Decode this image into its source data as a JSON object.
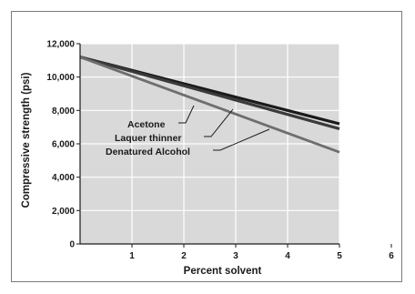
{
  "chart_data": {
    "type": "line",
    "xlabel": "Percent solvent",
    "ylabel": "Compressive strength (psi)",
    "xlim": [
      0,
      6
    ],
    "ylim": [
      0,
      12000
    ],
    "x_ticks": [
      1,
      2,
      3,
      4,
      5,
      6
    ],
    "y_ticks": [
      0,
      2000,
      4000,
      6000,
      8000,
      10000,
      12000
    ],
    "y_tick_labels": [
      "0",
      "2,000",
      "4,000",
      "6,000",
      "8,000",
      "10,000",
      "12,000"
    ],
    "x_tick_labels": [
      "1",
      "2",
      "3",
      "4",
      "5",
      "6"
    ],
    "grid": true,
    "series": [
      {
        "name": "Acetone",
        "x": [
          0,
          5
        ],
        "y": [
          11200,
          7200
        ],
        "color": "#1a1a1a"
      },
      {
        "name": "Laquer thinner",
        "x": [
          0,
          5
        ],
        "y": [
          11200,
          6900
        ],
        "color": "#3a3a3a"
      },
      {
        "name": "Denatured Alcohol",
        "x": [
          0,
          5
        ],
        "y": [
          11200,
          5500
        ],
        "color": "#6e6e6e"
      }
    ]
  }
}
